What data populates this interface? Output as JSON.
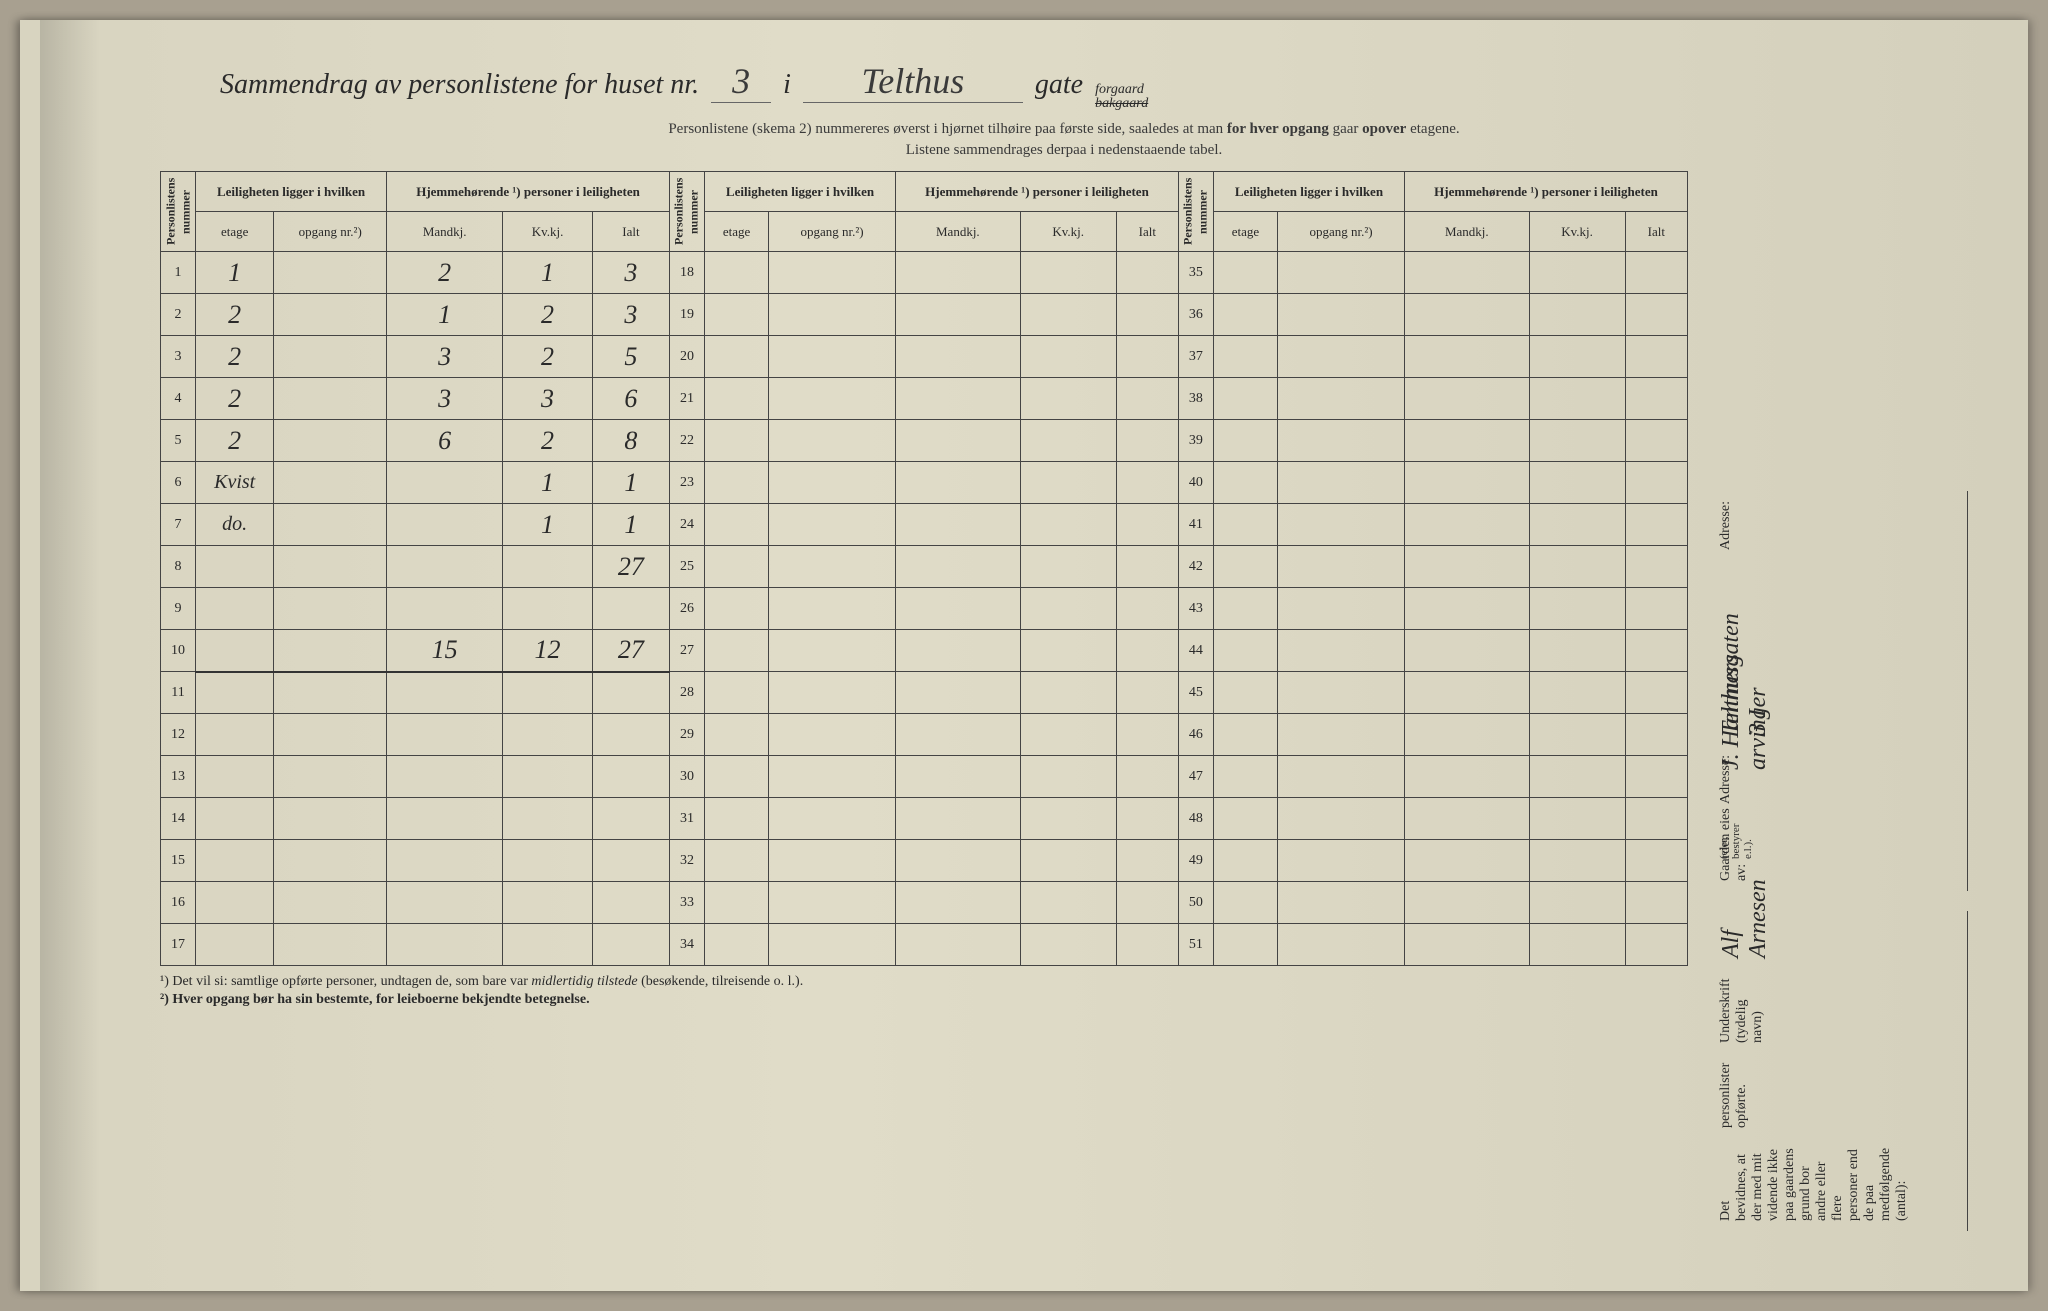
{
  "title": {
    "prefix": "Sammendrag av personlistene for huset nr.",
    "house_nr": "3",
    "mid": "i",
    "street": "Telthus",
    "suffix": "gate",
    "fraction_top": "forgaard",
    "fraction_bottom": "bakgaard"
  },
  "subtitle1_a": "Personlistene (skema 2) nummereres øverst i hjørnet tilhøire paa første side, saaledes at man ",
  "subtitle1_b": "for hver opgang",
  "subtitle1_c": " gaar ",
  "subtitle1_d": "opover",
  "subtitle1_e": " etagene.",
  "subtitle2": "Listene sammendrages derpaa i nedenstaaende tabel.",
  "headers": {
    "personlistens_nummer": "Personlistens nummer",
    "leiligheten": "Leiligheten ligger i hvilken",
    "hjemmehorende": "Hjemmehørende ¹) personer i leiligheten",
    "etage": "etage",
    "opgang": "opgang nr.²)",
    "mandkj": "Mandkj.",
    "kvkj": "Kv.kj.",
    "ialt": "Ialt"
  },
  "rows": [
    {
      "n": 1,
      "etage": "1",
      "opgang": "",
      "m": "2",
      "k": "1",
      "i": "3"
    },
    {
      "n": 2,
      "etage": "2",
      "opgang": "",
      "m": "1",
      "k": "2",
      "i": "3"
    },
    {
      "n": 3,
      "etage": "2",
      "opgang": "",
      "m": "3",
      "k": "2",
      "i": "5"
    },
    {
      "n": 4,
      "etage": "2",
      "opgang": "",
      "m": "3",
      "k": "3",
      "i": "6"
    },
    {
      "n": 5,
      "etage": "2",
      "opgang": "",
      "m": "6",
      "k": "2",
      "i": "8"
    },
    {
      "n": 6,
      "etage": "Kvist",
      "opgang": "",
      "m": "",
      "k": "1",
      "i": "1"
    },
    {
      "n": 7,
      "etage": "do.",
      "opgang": "",
      "m": "",
      "k": "1",
      "i": "1"
    },
    {
      "n": 8,
      "etage": "",
      "opgang": "",
      "m": "",
      "k": "",
      "i": "27"
    },
    {
      "n": 9,
      "etage": "",
      "opgang": "",
      "m": "",
      "k": "",
      "i": ""
    },
    {
      "n": 10,
      "etage": "",
      "opgang": "",
      "m": "15",
      "k": "12",
      "i": "27"
    },
    {
      "n": 11,
      "etage": "",
      "opgang": "",
      "m": "",
      "k": "",
      "i": ""
    },
    {
      "n": 12,
      "etage": "",
      "opgang": "",
      "m": "",
      "k": "",
      "i": ""
    },
    {
      "n": 13,
      "etage": "",
      "opgang": "",
      "m": "",
      "k": "",
      "i": ""
    },
    {
      "n": 14,
      "etage": "",
      "opgang": "",
      "m": "",
      "k": "",
      "i": ""
    },
    {
      "n": 15,
      "etage": "",
      "opgang": "",
      "m": "",
      "k": "",
      "i": ""
    },
    {
      "n": 16,
      "etage": "",
      "opgang": "",
      "m": "",
      "k": "",
      "i": ""
    },
    {
      "n": 17,
      "etage": "",
      "opgang": "",
      "m": "",
      "k": "",
      "i": ""
    }
  ],
  "col2_nums": [
    18,
    19,
    20,
    21,
    22,
    23,
    24,
    25,
    26,
    27,
    28,
    29,
    30,
    31,
    32,
    33,
    34
  ],
  "col3_nums": [
    35,
    36,
    37,
    38,
    39,
    40,
    41,
    42,
    43,
    44,
    45,
    46,
    47,
    48,
    49,
    50,
    51
  ],
  "footnote1_a": "¹) Det vil si: samtlige opførte personer, undtagen de, som bare var ",
  "footnote1_b": "midlertidig tilstede",
  "footnote1_c": " (besøkende, tilreisende o. l.).",
  "footnote2": "²) Hver opgang bør ha sin bestemte, for leieboerne bekjendte betegnelse.",
  "sidebar": {
    "gaarden_label": "Gaarden eies av:",
    "gaarden_value": "J. Hammers arvinger",
    "adresse_label": "Adresse:",
    "bevid_text": "Det bevidnes, at der med mit vidende ikke paa gaardens grund bor andre eller flere personer end de paa medfølgende (antal):",
    "personlister": "personlister opførte.",
    "underskrift_label": "Underskrift (tydelig navn)",
    "underskrift_value": "Alf Arnesen",
    "eier_note": "(eier, bestyrer e.l.).",
    "adresse2_label": "Adresse:",
    "adresse2_value": "Telthusgaten 3 I"
  }
}
